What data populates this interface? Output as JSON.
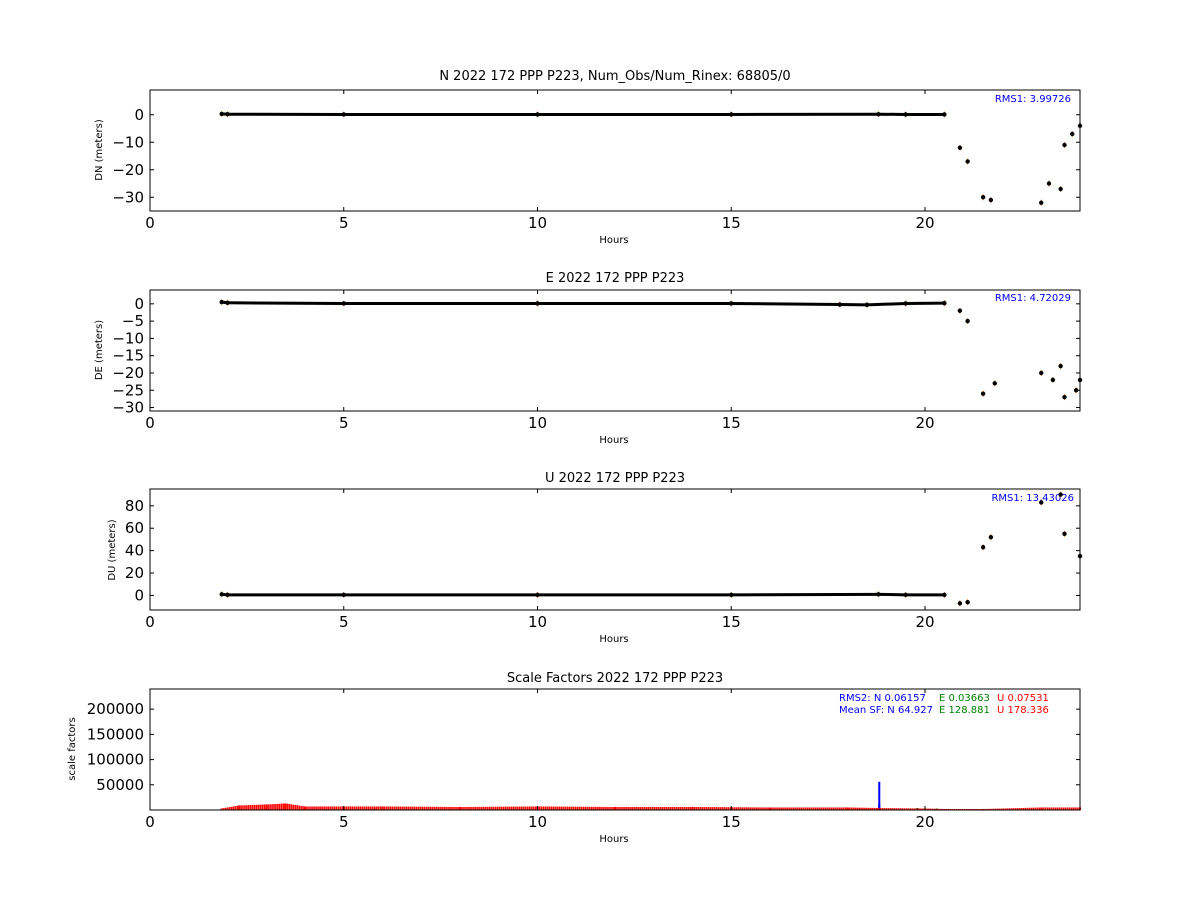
{
  "chart_data": [
    {
      "type": "scatter",
      "title": "N 2022 172 PPP  P223, Num_Obs/Num_Rinex: 68805/0",
      "xlabel": "Hours",
      "ylabel": "DN (meters)",
      "xlim": [
        0,
        24
      ],
      "ylim": [
        -35,
        9
      ],
      "xticks": [
        0,
        5,
        10,
        15,
        20
      ],
      "yticks": [
        0,
        -10,
        -20,
        -30
      ],
      "annotation": "RMS1:  3.99726",
      "colors": {
        "main": "#000000",
        "err": "#e8823c",
        "annotation": "#0000ff"
      },
      "series": [
        {
          "values": [
            [
              1.85,
              0.3
            ],
            [
              2.0,
              0.2
            ],
            [
              5,
              0.1
            ],
            [
              10,
              0.1
            ],
            [
              15,
              0.1
            ],
            [
              18.8,
              0.2
            ],
            [
              19.5,
              0.1
            ],
            [
              20.5,
              0.1
            ],
            [
              20.9,
              -12
            ],
            [
              21.1,
              -17
            ],
            [
              21.5,
              -30
            ],
            [
              21.7,
              -31
            ],
            [
              23.0,
              -32
            ],
            [
              23.2,
              -25
            ],
            [
              23.5,
              -27
            ],
            [
              23.6,
              -11
            ],
            [
              23.8,
              -7
            ],
            [
              24.0,
              -4
            ]
          ]
        }
      ]
    },
    {
      "type": "scatter",
      "title": "E 2022 172 PPP  P223",
      "xlabel": "Hours",
      "ylabel": "DE (meters)",
      "xlim": [
        0,
        24
      ],
      "ylim": [
        -31,
        4
      ],
      "xticks": [
        0,
        5,
        10,
        15,
        20
      ],
      "yticks": [
        0,
        -5,
        -10,
        -15,
        -20,
        -25,
        -30
      ],
      "annotation": "RMS1:  4.72029",
      "colors": {
        "main": "#000000",
        "err": "#e8823c",
        "annotation": "#0000ff"
      },
      "series": [
        {
          "values": [
            [
              1.85,
              0.5
            ],
            [
              2.0,
              0.3
            ],
            [
              5,
              0.1
            ],
            [
              10,
              0.1
            ],
            [
              15,
              0.1
            ],
            [
              17.8,
              -0.2
            ],
            [
              18.5,
              -0.3
            ],
            [
              19.5,
              0.1
            ],
            [
              20.5,
              0.2
            ],
            [
              20.9,
              -2
            ],
            [
              21.1,
              -5
            ],
            [
              21.5,
              -26
            ],
            [
              21.8,
              -23
            ],
            [
              23.0,
              -20
            ],
            [
              23.3,
              -22
            ],
            [
              23.5,
              -18
            ],
            [
              23.6,
              -27
            ],
            [
              23.9,
              -25
            ],
            [
              24.0,
              -22
            ]
          ]
        }
      ]
    },
    {
      "type": "scatter",
      "title": "U 2022 172 PPP  P223",
      "xlabel": "Hours",
      "ylabel": "DU (meters)",
      "xlim": [
        0,
        24
      ],
      "ylim": [
        -13,
        95
      ],
      "xticks": [
        0,
        5,
        10,
        15,
        20
      ],
      "yticks": [
        80,
        60,
        40,
        20,
        0
      ],
      "annotation": "RMS1: 13.43026",
      "colors": {
        "main": "#000000",
        "err": "#e8823c",
        "annotation": "#0000ff"
      },
      "series": [
        {
          "values": [
            [
              1.85,
              1
            ],
            [
              2.0,
              0.5
            ],
            [
              5,
              0.5
            ],
            [
              10,
              0.5
            ],
            [
              15,
              0.5
            ],
            [
              18.8,
              1
            ],
            [
              19.5,
              0.5
            ],
            [
              20.5,
              0.5
            ],
            [
              20.9,
              -7
            ],
            [
              21.1,
              -6
            ],
            [
              21.5,
              43
            ],
            [
              21.7,
              52
            ],
            [
              23.0,
              83
            ],
            [
              23.5,
              90
            ],
            [
              23.6,
              55
            ],
            [
              24.0,
              35
            ]
          ]
        }
      ]
    },
    {
      "type": "bar",
      "title": "Scale Factors 2022 172 PPP  P223",
      "xlabel": "Hours",
      "ylabel": "scale factors",
      "xlim": [
        0,
        24
      ],
      "ylim": [
        0,
        240000
      ],
      "xticks": [
        0,
        5,
        10,
        15,
        20
      ],
      "yticks": [
        50000,
        100000,
        150000,
        200000
      ],
      "annotations": {
        "rms2_prefix": "RMS2: N  0.06157",
        "rms2_e": "E  0.03663",
        "rms2_u": "U  0.07531",
        "mean_prefix": "Mean SF: N  64.927",
        "mean_e": "E 128.881",
        "mean_u": "U 178.336"
      },
      "colors": {
        "U": "#ff0000",
        "E": "#008000",
        "N": "#0000ff"
      },
      "series": [
        {
          "name": "U",
          "values": [
            [
              1.85,
              3000
            ],
            [
              2.3,
              9000
            ],
            [
              3.0,
              11000
            ],
            [
              3.5,
              13000
            ],
            [
              4.0,
              7000
            ],
            [
              6,
              7000
            ],
            [
              8,
              6000
            ],
            [
              10,
              7000
            ],
            [
              12,
              6000
            ],
            [
              14,
              6000
            ],
            [
              16,
              5000
            ],
            [
              18,
              5000
            ],
            [
              18.8,
              4000
            ],
            [
              20,
              3000
            ],
            [
              20.5,
              2000
            ],
            [
              21.5,
              2000
            ],
            [
              23.0,
              5000
            ],
            [
              24.0,
              5000
            ]
          ]
        },
        {
          "name": "E",
          "values": [
            [
              5.8,
              3000
            ],
            [
              19.8,
              4000
            ],
            [
              20.3,
              3000
            ]
          ]
        },
        {
          "name": "N",
          "values": [
            [
              18.82,
              56000
            ],
            [
              18.82,
              12000
            ]
          ]
        }
      ]
    }
  ]
}
